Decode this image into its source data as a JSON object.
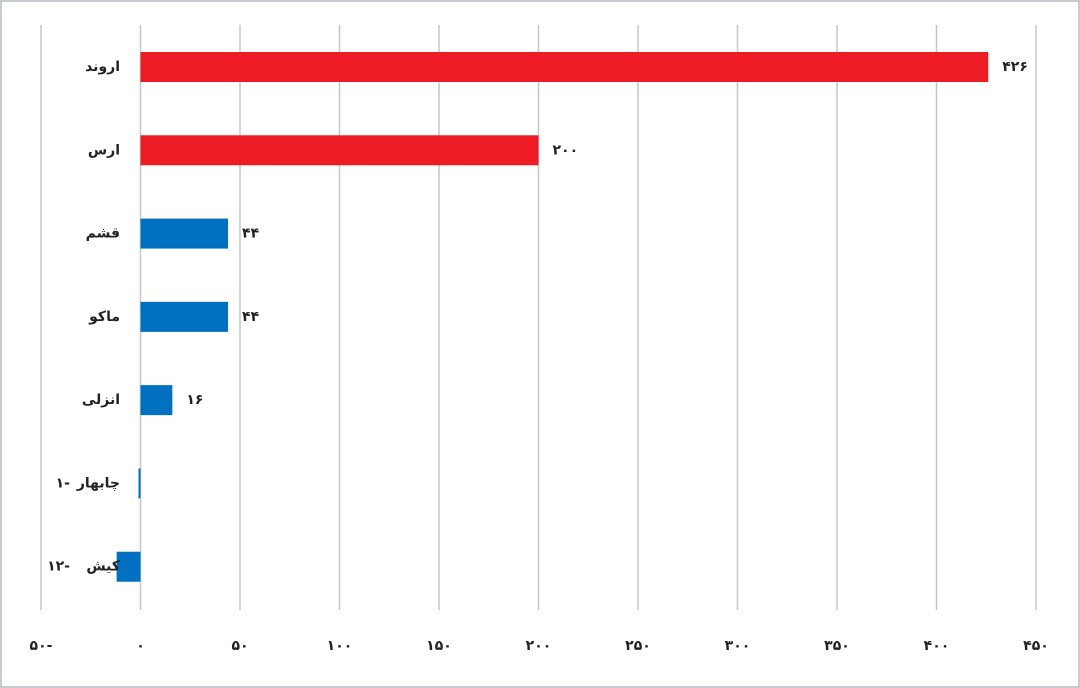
{
  "chart_data": {
    "type": "hbar",
    "categories": [
      "اروند",
      "ارس",
      "قشم",
      "ماکو",
      "انزلی",
      "چابهار",
      "کیش"
    ],
    "values": [
      426,
      200,
      44,
      44,
      16,
      -1,
      -12
    ],
    "value_labels": [
      "۴۲۶",
      "۲۰۰",
      "۴۴",
      "۴۴",
      "۱۶",
      "۱-",
      "۱۲-"
    ],
    "colors": [
      "#ed1c24",
      "#ed1c24",
      "#0070c0",
      "#0070c0",
      "#0070c0",
      "#0070c0",
      "#0070c0"
    ],
    "xlim": [
      -50,
      450
    ],
    "xticks": [
      {
        "value": -50,
        "label": "۵۰-"
      },
      {
        "value": 0,
        "label": "۰"
      },
      {
        "value": 50,
        "label": "۵۰"
      },
      {
        "value": 100,
        "label": "۱۰۰"
      },
      {
        "value": 150,
        "label": "۱۵۰"
      },
      {
        "value": 200,
        "label": "۲۰۰"
      },
      {
        "value": 250,
        "label": "۲۵۰"
      },
      {
        "value": 300,
        "label": "۳۰۰"
      },
      {
        "value": 350,
        "label": "۳۵۰"
      },
      {
        "value": 400,
        "label": "۴۰۰"
      },
      {
        "value": 450,
        "label": "۴۵۰"
      }
    ],
    "grid": true
  }
}
